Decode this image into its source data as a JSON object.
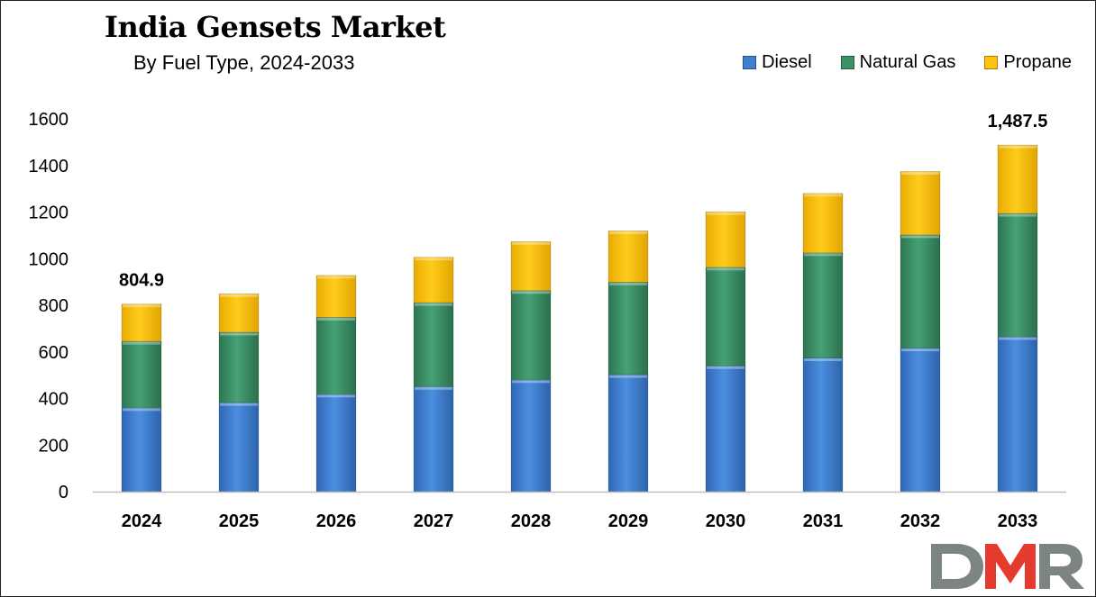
{
  "chart_data": {
    "type": "bar",
    "stacked": true,
    "title": "India Gensets Market",
    "subtitle": "By Fuel Type, 2024-2033",
    "xlabel": "",
    "ylabel": "",
    "categories": [
      "2024",
      "2025",
      "2026",
      "2027",
      "2028",
      "2029",
      "2030",
      "2031",
      "2032",
      "2033"
    ],
    "series": [
      {
        "name": "Diesel",
        "color": "#3f7fd1",
        "values": [
          360,
          382,
          418,
          451,
          480,
          502,
          540,
          574,
          616,
          665
        ]
      },
      {
        "name": "Natural Gas",
        "color": "#3a9165",
        "values": [
          285,
          302,
          330,
          360,
          383,
          397,
          423,
          451,
          486,
          529
        ]
      },
      {
        "name": "Propane",
        "color": "#ffc20e",
        "values": [
          159.9,
          165,
          180,
          195,
          210,
          220,
          238,
          255,
          272,
          293.5
        ]
      }
    ],
    "ylim": [
      0,
      1600
    ],
    "yticks": [
      0,
      200,
      400,
      600,
      800,
      1000,
      1200,
      1400,
      1600
    ],
    "grid": false,
    "legend_position": "top-right",
    "annotations": [
      {
        "category": "2024",
        "text": "804.9"
      },
      {
        "category": "2033",
        "text": "1,487.5"
      }
    ]
  },
  "logo": {
    "text": "DMR"
  }
}
